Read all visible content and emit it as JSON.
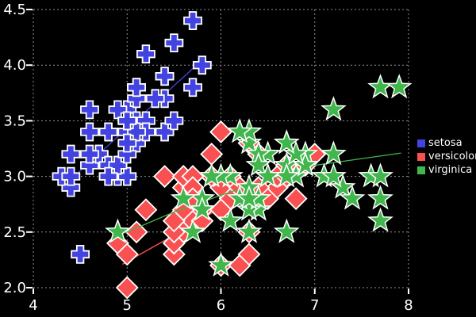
{
  "chart_data": {
    "type": "scatter",
    "title": "",
    "xlabel": "",
    "ylabel": "",
    "xlim": [
      4,
      8
    ],
    "ylim": [
      2.0,
      4.5
    ],
    "x_ticks": [
      4,
      5,
      6,
      7,
      8
    ],
    "x_tick_labels": [
      "4",
      "5",
      "6",
      "7",
      "8"
    ],
    "y_ticks": [
      4.5,
      4.0,
      3.5,
      3.0,
      2.5,
      2.0
    ],
    "y_tick_labels": [
      "4.5",
      "4.0",
      "3.5",
      "3.0",
      "2.5",
      "2.0"
    ],
    "grid": true,
    "background_color": "#000000",
    "grid_color": "#8f8f8f",
    "text_color": "#ffffff",
    "marker_outline_color": "#ffffff",
    "legend_position": "right-outside",
    "legend": [
      {
        "label": "setosa",
        "color": "#4343e2"
      },
      {
        "label": "versicolor",
        "color": "#f95151"
      },
      {
        "label": "virginica",
        "color": "#41b64d"
      }
    ],
    "series": [
      {
        "name": "setosa",
        "marker": "plus",
        "color": "#4343e2",
        "trend": [
          [
            4.46,
            3.02
          ],
          [
            5.78,
            4.03
          ]
        ],
        "points": [
          [
            5.1,
            3.5
          ],
          [
            4.9,
            3.0
          ],
          [
            4.7,
            3.2
          ],
          [
            4.6,
            3.1
          ],
          [
            5.0,
            3.6
          ],
          [
            5.4,
            3.9
          ],
          [
            4.6,
            3.4
          ],
          [
            5.0,
            3.4
          ],
          [
            4.4,
            2.9
          ],
          [
            4.9,
            3.1
          ],
          [
            5.4,
            3.7
          ],
          [
            4.8,
            3.4
          ],
          [
            4.8,
            3.0
          ],
          [
            4.3,
            3.0
          ],
          [
            5.8,
            4.0
          ],
          [
            5.7,
            4.4
          ],
          [
            5.4,
            3.9
          ],
          [
            5.1,
            3.5
          ],
          [
            5.7,
            3.8
          ],
          [
            5.1,
            3.8
          ],
          [
            5.4,
            3.4
          ],
          [
            5.1,
            3.7
          ],
          [
            4.6,
            3.6
          ],
          [
            5.1,
            3.3
          ],
          [
            4.8,
            3.4
          ],
          [
            5.0,
            3.0
          ],
          [
            5.0,
            3.4
          ],
          [
            5.2,
            3.5
          ],
          [
            5.2,
            3.4
          ],
          [
            4.7,
            3.2
          ],
          [
            4.8,
            3.1
          ],
          [
            5.4,
            3.4
          ],
          [
            5.2,
            4.1
          ],
          [
            5.5,
            4.2
          ],
          [
            4.9,
            3.1
          ],
          [
            5.0,
            3.2
          ],
          [
            5.5,
            3.5
          ],
          [
            4.9,
            3.6
          ],
          [
            4.4,
            3.0
          ],
          [
            5.1,
            3.4
          ],
          [
            5.0,
            3.5
          ],
          [
            4.5,
            2.3
          ],
          [
            4.4,
            3.2
          ],
          [
            5.0,
            3.5
          ],
          [
            5.1,
            3.8
          ],
          [
            4.8,
            3.0
          ],
          [
            5.1,
            3.8
          ],
          [
            4.6,
            3.2
          ],
          [
            5.3,
            3.7
          ],
          [
            5.0,
            3.3
          ]
        ]
      },
      {
        "name": "versicolor",
        "marker": "diamond",
        "color": "#f95151",
        "trend": [
          [
            4.95,
            2.21
          ],
          [
            5.6,
            2.52
          ],
          [
            6.3,
            2.87
          ],
          [
            7.0,
            3.12
          ]
        ],
        "points": [
          [
            7.0,
            3.2
          ],
          [
            6.4,
            3.2
          ],
          [
            6.9,
            3.1
          ],
          [
            5.5,
            2.3
          ],
          [
            6.5,
            2.8
          ],
          [
            5.7,
            2.8
          ],
          [
            6.3,
            3.3
          ],
          [
            4.9,
            2.4
          ],
          [
            6.6,
            2.9
          ],
          [
            5.2,
            2.7
          ],
          [
            5.0,
            2.0
          ],
          [
            5.9,
            3.0
          ],
          [
            6.0,
            2.2
          ],
          [
            6.1,
            2.9
          ],
          [
            5.6,
            2.9
          ],
          [
            6.7,
            3.1
          ],
          [
            5.6,
            3.0
          ],
          [
            5.8,
            2.7
          ],
          [
            6.2,
            2.2
          ],
          [
            5.6,
            2.5
          ],
          [
            5.9,
            3.2
          ],
          [
            6.1,
            2.8
          ],
          [
            6.3,
            2.5
          ],
          [
            6.1,
            2.8
          ],
          [
            6.4,
            2.9
          ],
          [
            6.6,
            3.0
          ],
          [
            6.8,
            2.8
          ],
          [
            6.7,
            3.0
          ],
          [
            6.0,
            2.9
          ],
          [
            5.7,
            2.6
          ],
          [
            5.5,
            2.4
          ],
          [
            5.5,
            2.4
          ],
          [
            5.8,
            2.7
          ],
          [
            6.0,
            2.7
          ],
          [
            5.4,
            3.0
          ],
          [
            6.0,
            3.4
          ],
          [
            6.7,
            3.1
          ],
          [
            6.3,
            2.3
          ],
          [
            5.6,
            3.0
          ],
          [
            5.5,
            2.5
          ],
          [
            5.5,
            2.6
          ],
          [
            6.1,
            3.0
          ],
          [
            5.8,
            2.6
          ],
          [
            5.0,
            2.3
          ],
          [
            5.6,
            2.7
          ],
          [
            5.7,
            3.0
          ],
          [
            5.7,
            2.9
          ],
          [
            6.2,
            2.9
          ],
          [
            5.1,
            2.5
          ],
          [
            5.7,
            2.8
          ]
        ]
      },
      {
        "name": "virginica",
        "marker": "star",
        "color": "#41b64d",
        "trend": [
          [
            4.97,
            2.49
          ],
          [
            5.5,
            2.68
          ],
          [
            6.1,
            2.86
          ],
          [
            7.0,
            3.1
          ],
          [
            7.92,
            3.21
          ]
        ],
        "points": [
          [
            6.3,
            3.3
          ],
          [
            5.8,
            2.7
          ],
          [
            7.1,
            3.0
          ],
          [
            6.3,
            2.9
          ],
          [
            6.5,
            3.0
          ],
          [
            7.6,
            3.0
          ],
          [
            4.9,
            2.5
          ],
          [
            7.3,
            2.9
          ],
          [
            6.7,
            2.5
          ],
          [
            7.2,
            3.6
          ],
          [
            6.5,
            3.2
          ],
          [
            6.4,
            2.7
          ],
          [
            6.8,
            3.0
          ],
          [
            5.7,
            2.5
          ],
          [
            5.8,
            2.8
          ],
          [
            6.4,
            3.2
          ],
          [
            6.5,
            3.0
          ],
          [
            7.7,
            3.8
          ],
          [
            7.7,
            2.6
          ],
          [
            6.0,
            2.2
          ],
          [
            6.9,
            3.2
          ],
          [
            5.6,
            2.8
          ],
          [
            7.7,
            2.8
          ],
          [
            6.3,
            2.7
          ],
          [
            6.7,
            3.3
          ],
          [
            7.2,
            3.2
          ],
          [
            6.2,
            2.8
          ],
          [
            6.1,
            3.0
          ],
          [
            6.4,
            2.8
          ],
          [
            7.2,
            3.0
          ],
          [
            7.4,
            2.8
          ],
          [
            7.9,
            3.8
          ],
          [
            6.4,
            2.8
          ],
          [
            6.3,
            2.8
          ],
          [
            6.1,
            2.6
          ],
          [
            7.7,
            3.0
          ],
          [
            6.3,
            3.4
          ],
          [
            6.4,
            3.1
          ],
          [
            6.0,
            3.0
          ],
          [
            6.9,
            3.1
          ],
          [
            6.7,
            3.1
          ],
          [
            6.9,
            3.1
          ],
          [
            5.8,
            2.7
          ],
          [
            6.8,
            3.2
          ],
          [
            6.7,
            3.3
          ],
          [
            6.7,
            3.0
          ],
          [
            6.3,
            2.5
          ],
          [
            6.5,
            3.0
          ],
          [
            6.2,
            3.4
          ],
          [
            5.9,
            3.0
          ]
        ]
      }
    ]
  }
}
